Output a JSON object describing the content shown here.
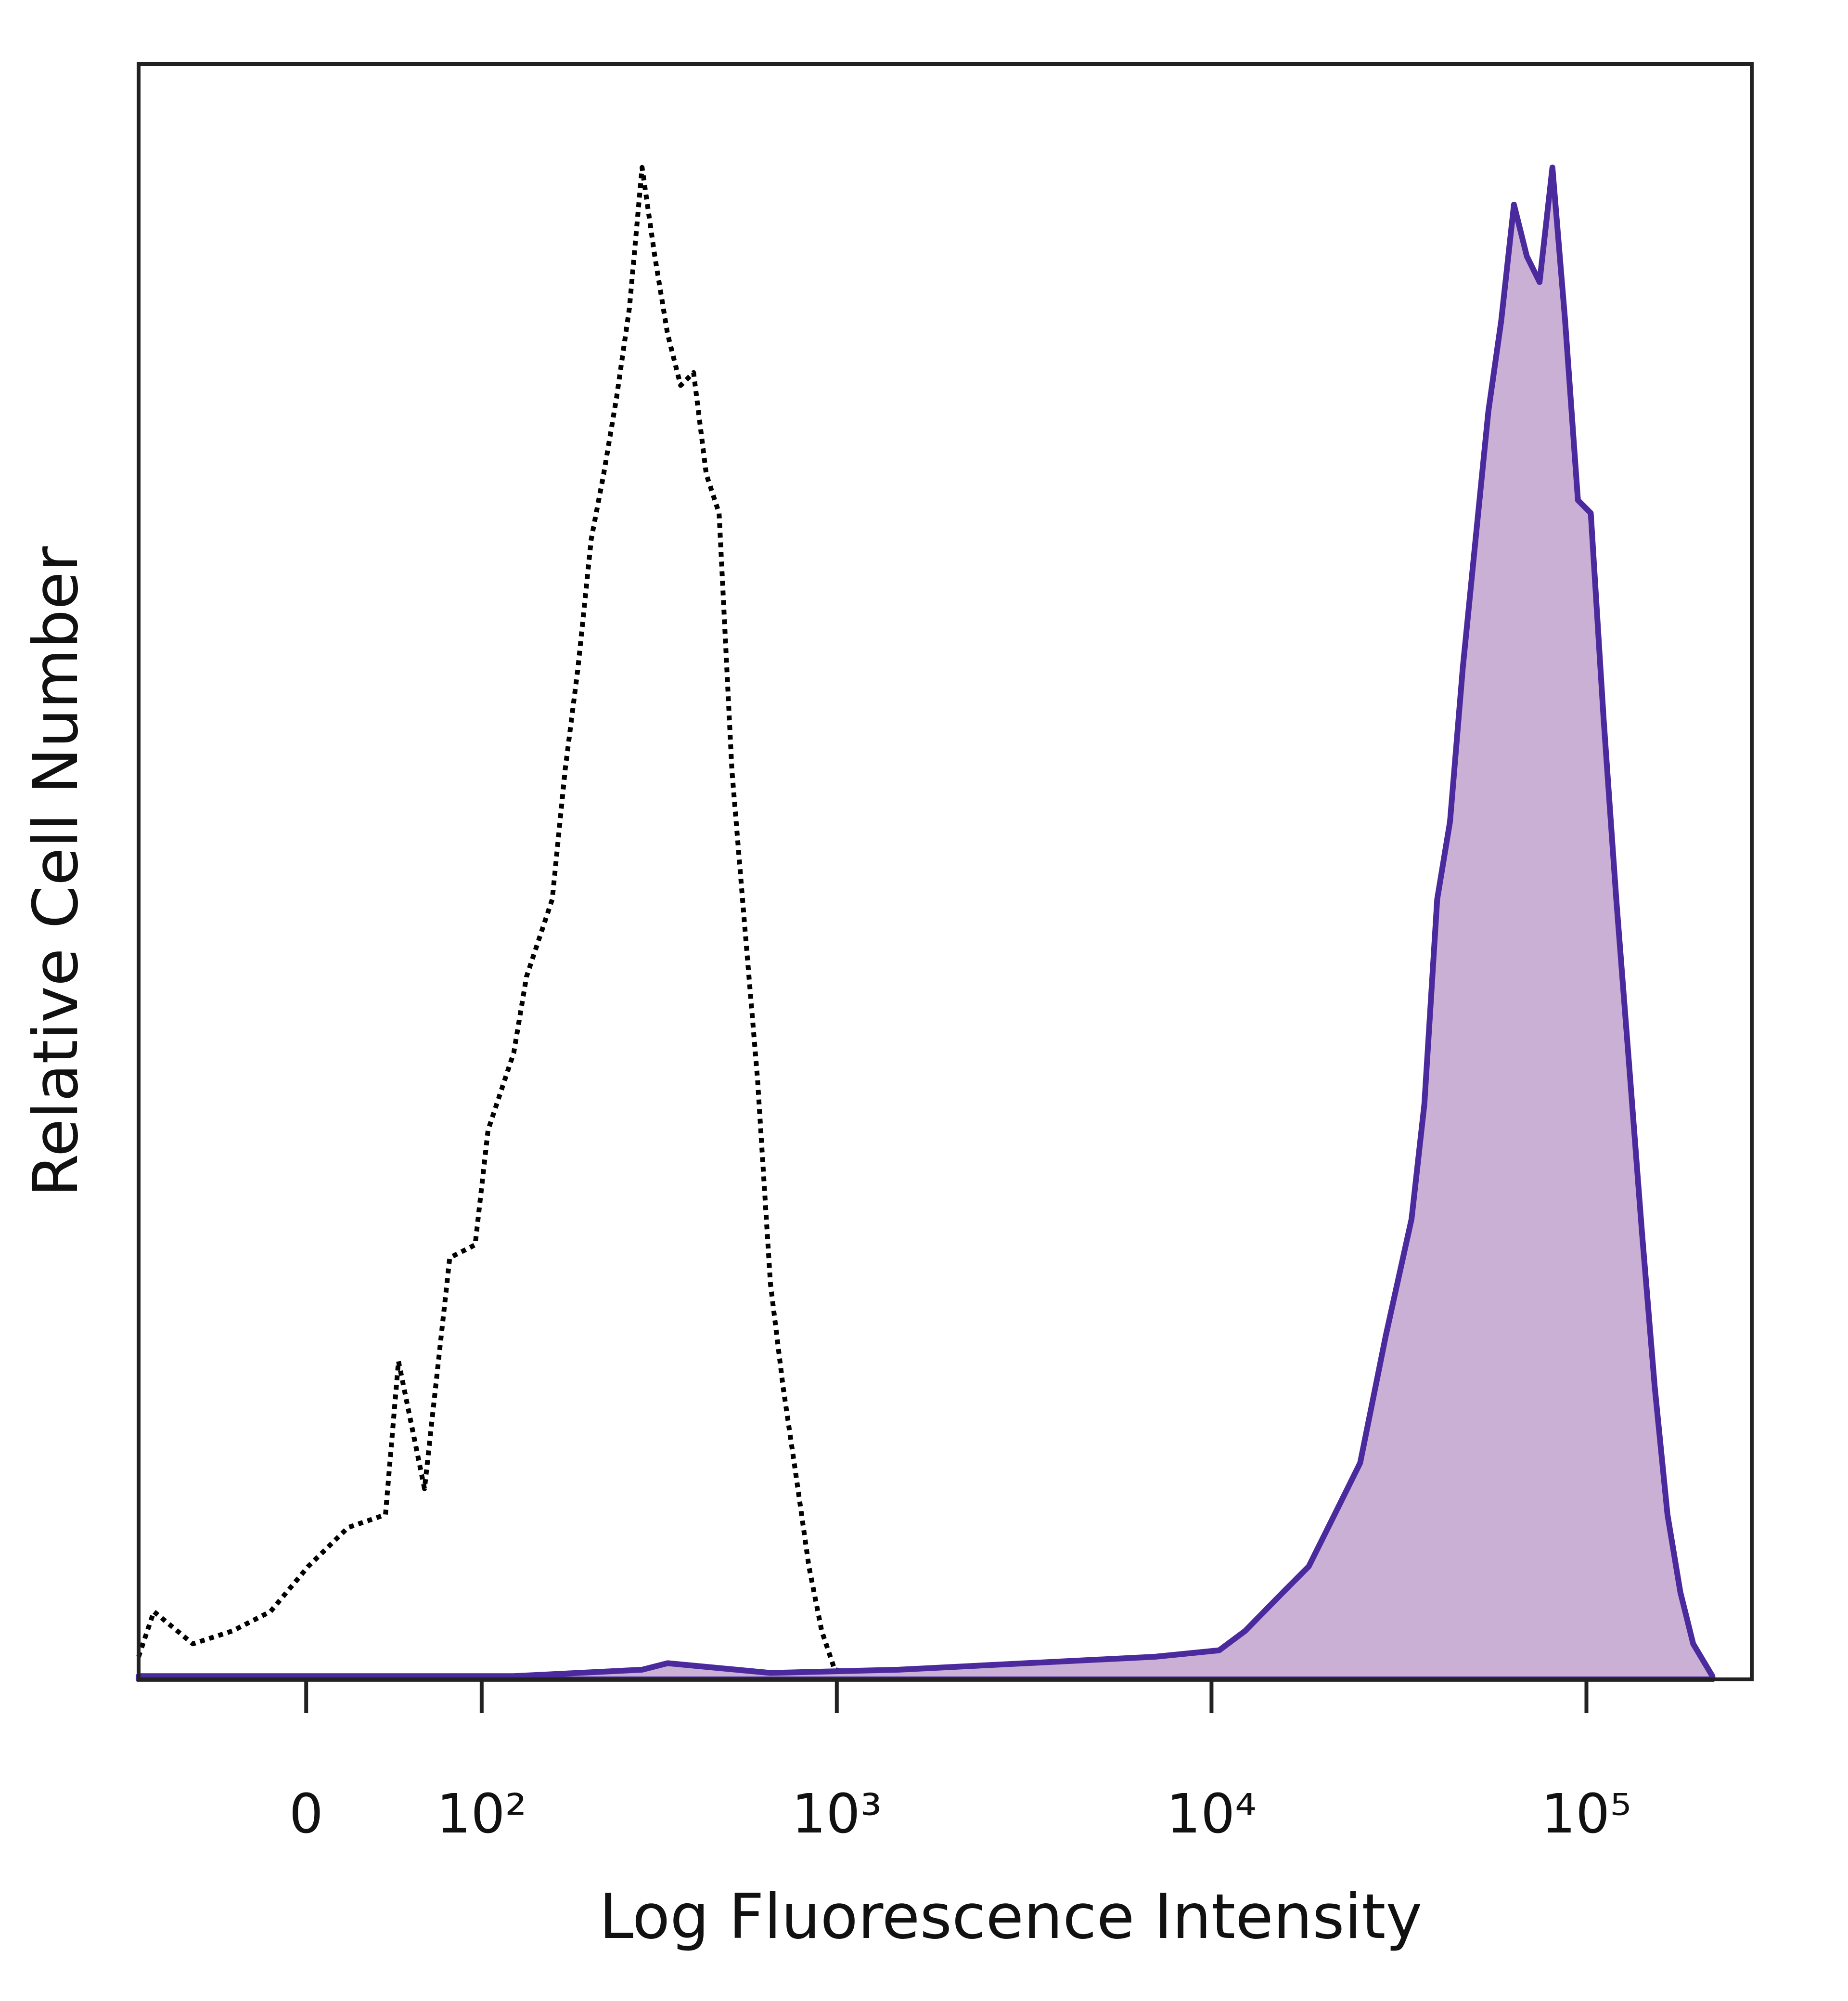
{
  "chart_data": {
    "type": "histogram-overlay",
    "x_label": "Log Fluorescence Intensity",
    "y_label": "Relative Cell Number",
    "xscale": "biexponential",
    "xlim": [
      -94,
      276000
    ],
    "ylim": [
      0,
      100
    ],
    "xticks": [
      0,
      {
        "value": 100,
        "label": "10²"
      },
      {
        "value": 1000,
        "label": "10³"
      },
      {
        "value": 10000,
        "label": "10⁴"
      },
      {
        "value": 100000,
        "label": "10⁵"
      }
    ],
    "series": [
      {
        "color": "#000000",
        "linestyle": "dotted",
        "x": [
          -94,
          -83,
          -58,
          -36,
          -17,
          1,
          20,
          39,
          46,
          61,
          77,
          95,
          105,
          127,
          139,
          166,
          181,
          197,
          215,
          233,
          253,
          275,
          298,
          323,
          350,
          380,
          412,
          446,
          483,
          523,
          566,
          613,
          664,
          718,
          778,
          842,
          911,
          987,
          1249
        ],
        "values": [
          1.4,
          4.2,
          2.2,
          3.0,
          4.2,
          7.0,
          9.4,
          10.2,
          19.7,
          11.8,
          26.1,
          26.9,
          34.0,
          38.8,
          43.5,
          48.3,
          56.3,
          62.6,
          70.6,
          74.6,
          79.3,
          84.9,
          93.6,
          88.1,
          83.3,
          80.1,
          80.9,
          74.6,
          72.2,
          56.3,
          46.7,
          37.2,
          24.5,
          18.1,
          12.6,
          7.0,
          3.0,
          0.6,
          0.2
        ]
      },
      {
        "color": "#4b2a9e",
        "fill": "#cbb0d6",
        "linestyle": "solid",
        "x": [
          -94,
          127,
          298,
          350,
          664,
          1463,
          3213,
          7067,
          10480,
          12300,
          15530,
          18180,
          21290,
          24920,
          29180,
          34160,
          36960,
          39990,
          43270,
          46790,
          50630,
          54760,
          59260,
          64080,
          69330,
          74990,
          81150,
          87730,
          94920,
          102700,
          111100,
          120100,
          130000,
          140600,
          152100,
          164500,
          178000,
          192600,
          216800
        ],
        "values": [
          0.2,
          0.2,
          0.6,
          1.0,
          0.4,
          0.6,
          1.0,
          1.4,
          1.8,
          3.0,
          5.4,
          7.0,
          10.2,
          13.4,
          21.3,
          28.5,
          35.6,
          48.3,
          53.1,
          62.6,
          70.6,
          78.5,
          84.1,
          91.3,
          88.1,
          86.5,
          93.6,
          84.1,
          73.0,
          72.2,
          59.5,
          48.3,
          38.0,
          27.7,
          18.1,
          10.2,
          5.4,
          2.2,
          0.2
        ]
      }
    ]
  }
}
